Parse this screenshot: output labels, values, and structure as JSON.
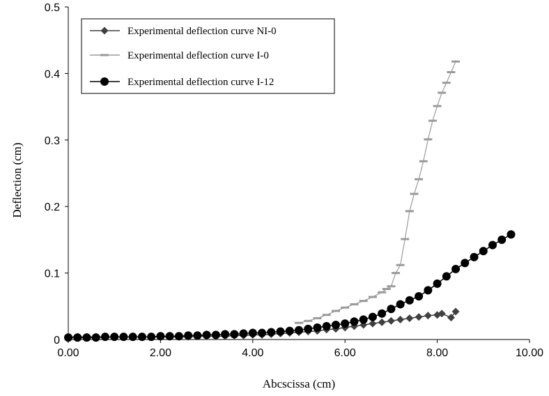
{
  "chart_data": {
    "type": "scatter",
    "xlabel": "Abcscissa (cm)",
    "ylabel": "Deflection (cm)",
    "xlim": [
      0,
      10
    ],
    "ylim": [
      0,
      0.5
    ],
    "x_ticks": [
      "0.00",
      "2.00",
      "4.00",
      "6.00",
      "8.00",
      "10.00"
    ],
    "y_ticks": [
      "0",
      "0.1",
      "0.2",
      "0.3",
      "0.4",
      "0.5"
    ],
    "grid": false,
    "legend_position": "top-left",
    "series": [
      {
        "name": "Experimental deflection curve NI-0",
        "marker": "diamond",
        "color": "#404040",
        "points": [
          [
            0.0,
            0.004
          ],
          [
            0.2,
            0.004
          ],
          [
            0.4,
            0.004
          ],
          [
            0.6,
            0.004
          ],
          [
            0.8,
            0.004
          ],
          [
            1.0,
            0.004
          ],
          [
            1.2,
            0.004
          ],
          [
            1.4,
            0.004
          ],
          [
            1.6,
            0.004
          ],
          [
            1.8,
            0.004
          ],
          [
            2.0,
            0.004
          ],
          [
            2.2,
            0.004
          ],
          [
            2.4,
            0.004
          ],
          [
            2.6,
            0.004
          ],
          [
            2.8,
            0.005
          ],
          [
            3.0,
            0.005
          ],
          [
            3.2,
            0.005
          ],
          [
            3.4,
            0.005
          ],
          [
            3.6,
            0.006
          ],
          [
            3.8,
            0.006
          ],
          [
            4.0,
            0.007
          ],
          [
            4.2,
            0.007
          ],
          [
            4.4,
            0.008
          ],
          [
            4.6,
            0.009
          ],
          [
            4.8,
            0.01
          ],
          [
            5.0,
            0.011
          ],
          [
            5.2,
            0.012
          ],
          [
            5.4,
            0.013
          ],
          [
            5.6,
            0.015
          ],
          [
            5.8,
            0.016
          ],
          [
            6.0,
            0.018
          ],
          [
            6.2,
            0.02
          ],
          [
            6.4,
            0.022
          ],
          [
            6.6,
            0.024
          ],
          [
            6.8,
            0.026
          ],
          [
            7.0,
            0.028
          ],
          [
            7.2,
            0.03
          ],
          [
            7.4,
            0.032
          ],
          [
            7.6,
            0.034
          ],
          [
            7.8,
            0.036
          ],
          [
            8.0,
            0.037
          ],
          [
            8.1,
            0.039
          ],
          [
            8.3,
            0.033
          ],
          [
            8.4,
            0.042
          ]
        ]
      },
      {
        "name": "Experimental deflection curve I-0",
        "marker": "dash",
        "color": "#9a9a9a",
        "points": [
          [
            5.0,
            0.025
          ],
          [
            5.2,
            0.028
          ],
          [
            5.4,
            0.032
          ],
          [
            5.6,
            0.037
          ],
          [
            5.8,
            0.043
          ],
          [
            6.0,
            0.048
          ],
          [
            6.2,
            0.053
          ],
          [
            6.4,
            0.058
          ],
          [
            6.6,
            0.064
          ],
          [
            6.8,
            0.071
          ],
          [
            6.9,
            0.076
          ],
          [
            7.0,
            0.08
          ],
          [
            7.1,
            0.1
          ],
          [
            7.2,
            0.112
          ],
          [
            7.3,
            0.151
          ],
          [
            7.4,
            0.193
          ],
          [
            7.5,
            0.219
          ],
          [
            7.6,
            0.241
          ],
          [
            7.7,
            0.268
          ],
          [
            7.8,
            0.301
          ],
          [
            7.9,
            0.329
          ],
          [
            8.0,
            0.351
          ],
          [
            8.1,
            0.371
          ],
          [
            8.2,
            0.386
          ],
          [
            8.3,
            0.402
          ],
          [
            8.4,
            0.418
          ]
        ]
      },
      {
        "name": "Experimental deflection curve I-12",
        "marker": "circle",
        "color": "#000000",
        "points": [
          [
            0.0,
            0.003
          ],
          [
            0.2,
            0.003
          ],
          [
            0.4,
            0.003
          ],
          [
            0.6,
            0.003
          ],
          [
            0.8,
            0.004
          ],
          [
            1.0,
            0.004
          ],
          [
            1.2,
            0.004
          ],
          [
            1.4,
            0.004
          ],
          [
            1.6,
            0.004
          ],
          [
            1.8,
            0.004
          ],
          [
            2.0,
            0.005
          ],
          [
            2.2,
            0.005
          ],
          [
            2.4,
            0.005
          ],
          [
            2.6,
            0.006
          ],
          [
            2.8,
            0.006
          ],
          [
            3.0,
            0.007
          ],
          [
            3.2,
            0.007
          ],
          [
            3.4,
            0.008
          ],
          [
            3.6,
            0.008
          ],
          [
            3.8,
            0.009
          ],
          [
            4.0,
            0.01
          ],
          [
            4.2,
            0.01
          ],
          [
            4.4,
            0.011
          ],
          [
            4.6,
            0.012
          ],
          [
            4.8,
            0.013
          ],
          [
            5.0,
            0.014
          ],
          [
            5.2,
            0.016
          ],
          [
            5.4,
            0.018
          ],
          [
            5.6,
            0.02
          ],
          [
            5.8,
            0.022
          ],
          [
            6.0,
            0.024
          ],
          [
            6.2,
            0.027
          ],
          [
            6.4,
            0.03
          ],
          [
            6.6,
            0.034
          ],
          [
            6.8,
            0.039
          ],
          [
            7.0,
            0.046
          ],
          [
            7.2,
            0.053
          ],
          [
            7.4,
            0.059
          ],
          [
            7.6,
            0.065
          ],
          [
            7.8,
            0.074
          ],
          [
            8.0,
            0.084
          ],
          [
            8.2,
            0.095
          ],
          [
            8.4,
            0.106
          ],
          [
            8.6,
            0.115
          ],
          [
            8.8,
            0.124
          ],
          [
            9.0,
            0.133
          ],
          [
            9.2,
            0.142
          ],
          [
            9.4,
            0.15
          ],
          [
            9.6,
            0.158
          ]
        ]
      }
    ]
  }
}
